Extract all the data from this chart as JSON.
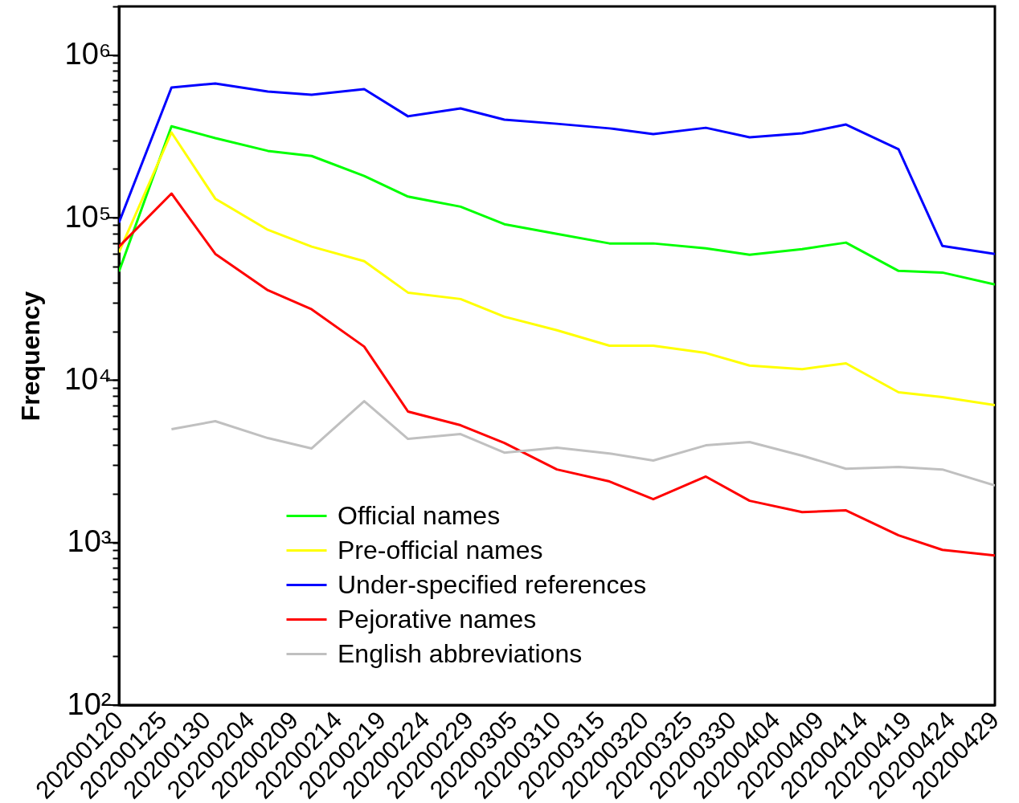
{
  "chart_data": {
    "type": "line",
    "ylabel": "Frequency",
    "log": "y",
    "legend": "bottom",
    "grid": false,
    "line_style": "solid",
    "marker": "none",
    "x": [
      "2020-01-20",
      "2020-01-26",
      "2020-01-31",
      "2020-02-06",
      "2020-02-11",
      "2020-02-17",
      "2020-02-22",
      "2020-02-28",
      "2020-03-04",
      "2020-03-10",
      "2020-03-16",
      "2020-03-21",
      "2020-03-27",
      "2020-04-01",
      "2020-04-07",
      "2020-04-12",
      "2020-04-18",
      "2020-04-23",
      "2020-04-29"
    ],
    "xlim": [
      "2020-01-20",
      "2020-04-29"
    ],
    "xticks": [
      {
        "value": "2020-01-20",
        "label": "20200120"
      },
      {
        "value": "2020-01-25",
        "label": "20200125"
      },
      {
        "value": "2020-01-30",
        "label": "20200130"
      },
      {
        "value": "2020-02-04",
        "label": "20200204"
      },
      {
        "value": "2020-02-09",
        "label": "20200209"
      },
      {
        "value": "2020-02-14",
        "label": "20200214"
      },
      {
        "value": "2020-02-19",
        "label": "20200219"
      },
      {
        "value": "2020-02-24",
        "label": "20200224"
      },
      {
        "value": "2020-02-29",
        "label": "20200229"
      },
      {
        "value": "2020-03-05",
        "label": "20200305"
      },
      {
        "value": "2020-03-10",
        "label": "20200310"
      },
      {
        "value": "2020-03-15",
        "label": "20200315"
      },
      {
        "value": "2020-03-20",
        "label": "20200320"
      },
      {
        "value": "2020-03-25",
        "label": "20200325"
      },
      {
        "value": "2020-03-30",
        "label": "20200330"
      },
      {
        "value": "2020-04-04",
        "label": "20200404"
      },
      {
        "value": "2020-04-09",
        "label": "20200409"
      },
      {
        "value": "2020-04-14",
        "label": "20200414"
      },
      {
        "value": "2020-04-19",
        "label": "20200419"
      },
      {
        "value": "2020-04-24",
        "label": "20200424"
      },
      {
        "value": "2020-04-29",
        "label": "20200429"
      }
    ],
    "ylim": [
      100,
      2000000
    ],
    "yticks": [
      {
        "value": 100,
        "label": "10²"
      },
      {
        "value": 200,
        "label": null
      },
      {
        "value": 300,
        "label": null
      },
      {
        "value": 400,
        "label": null
      },
      {
        "value": 500,
        "label": null
      },
      {
        "value": 600,
        "label": null
      },
      {
        "value": 700,
        "label": null
      },
      {
        "value": 800,
        "label": null
      },
      {
        "value": 900,
        "label": null
      },
      {
        "value": 1000,
        "label": "10³"
      },
      {
        "value": 2000,
        "label": null
      },
      {
        "value": 3000,
        "label": null
      },
      {
        "value": 4000,
        "label": null
      },
      {
        "value": 5000,
        "label": null
      },
      {
        "value": 6000,
        "label": null
      },
      {
        "value": 7000,
        "label": null
      },
      {
        "value": 8000,
        "label": null
      },
      {
        "value": 9000,
        "label": null
      },
      {
        "value": 10000,
        "label": "10⁴"
      },
      {
        "value": 20000,
        "label": null
      },
      {
        "value": 30000,
        "label": null
      },
      {
        "value": 40000,
        "label": null
      },
      {
        "value": 50000,
        "label": null
      },
      {
        "value": 60000,
        "label": null
      },
      {
        "value": 70000,
        "label": null
      },
      {
        "value": 80000,
        "label": null
      },
      {
        "value": 90000,
        "label": null
      },
      {
        "value": 100000,
        "label": "10⁵"
      },
      {
        "value": 200000,
        "label": null
      },
      {
        "value": 300000,
        "label": null
      },
      {
        "value": 400000,
        "label": null
      },
      {
        "value": 500000,
        "label": null
      },
      {
        "value": 600000,
        "label": null
      },
      {
        "value": 700000,
        "label": null
      },
      {
        "value": 800000,
        "label": null
      },
      {
        "value": 900000,
        "label": null
      },
      {
        "value": 1000000,
        "label": "10⁶"
      },
      {
        "value": 2000000,
        "label": null
      }
    ],
    "tick_labels": "xy",
    "series": [
      {
        "name": "Official names",
        "color": "#00ff00",
        "values": [
          46600,
          366000,
          309000,
          258000,
          240000,
          181000,
          135000,
          117000,
          91300,
          79600,
          69500,
          69500,
          64900,
          59200,
          64100,
          70300,
          47100,
          46000,
          38800
        ]
      },
      {
        "name": "Pre-official names",
        "color": "#ffff00",
        "values": [
          61200,
          335000,
          131000,
          84300,
          66400,
          54000,
          34600,
          31600,
          24600,
          20300,
          16300,
          16300,
          14700,
          12300,
          11700,
          12700,
          8430,
          7870,
          7030
        ]
      },
      {
        "name": "Under-specified references",
        "color": "#0000ff",
        "values": [
          93400,
          634000,
          671000,
          598000,
          572000,
          619000,
          421000,
          471000,
          402000,
          379000,
          355000,
          327000,
          358000,
          313000,
          331000,
          375000,
          264000,
          67100,
          59900
        ]
      },
      {
        "name": "Pejorative names",
        "color": "#ff0000",
        "values": [
          66400,
          141000,
          59900,
          35800,
          27300,
          16100,
          6410,
          5280,
          4110,
          2820,
          2380,
          1850,
          2550,
          1810,
          1540,
          1580,
          1110,
          902,
          833
        ]
      },
      {
        "name": "English abbreviations",
        "color": "#c0c0c0",
        "values": [
          null,
          4990,
          5590,
          4400,
          3800,
          7430,
          4350,
          4660,
          3580,
          3840,
          3540,
          3200,
          3970,
          4160,
          3430,
          2850,
          2920,
          2820,
          2250
        ]
      }
    ]
  }
}
